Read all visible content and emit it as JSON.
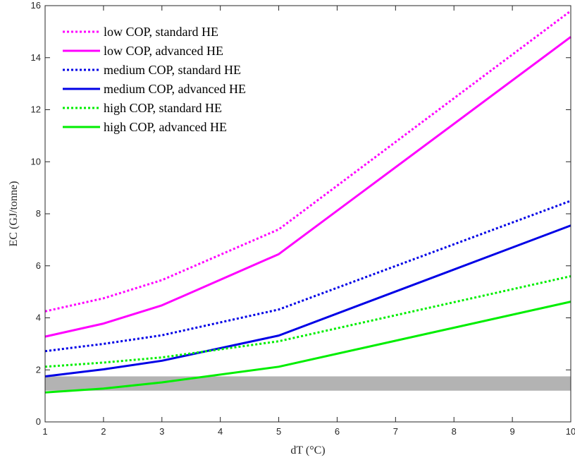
{
  "chart_data": {
    "type": "line",
    "title": "",
    "xlabel": "dT (°C)",
    "ylabel": "EC (GJ/tonne)",
    "xlim": [
      1,
      10
    ],
    "ylim": [
      0,
      16
    ],
    "xticks": [
      1,
      2,
      3,
      4,
      5,
      6,
      7,
      8,
      9,
      10
    ],
    "yticks": [
      0,
      2,
      4,
      6,
      8,
      10,
      12,
      14,
      16
    ],
    "grid": false,
    "legend_position": "top-left",
    "x": [
      1,
      2,
      3,
      5,
      10
    ],
    "band": {
      "y_range": [
        1.2,
        1.75
      ],
      "color": "#b3b3b3"
    },
    "series": [
      {
        "name": "low COP, standard HE",
        "color": "#ff00ff",
        "style": "dotted",
        "values": [
          4.25,
          4.75,
          5.45,
          7.4,
          15.8
        ]
      },
      {
        "name": "low COP, advanced HE",
        "color": "#ff00ff",
        "style": "solid",
        "values": [
          3.28,
          3.78,
          4.48,
          6.45,
          14.8
        ]
      },
      {
        "name": "medium COP, standard HE",
        "color": "#0000e6",
        "style": "dotted",
        "values": [
          2.72,
          3.0,
          3.33,
          4.32,
          8.5
        ]
      },
      {
        "name": "medium COP, advanced HE",
        "color": "#0000e6",
        "style": "solid",
        "values": [
          1.75,
          2.02,
          2.35,
          3.32,
          7.55
        ]
      },
      {
        "name": "high COP, standard HE",
        "color": "#00ee00",
        "style": "dotted",
        "values": [
          2.12,
          2.28,
          2.48,
          3.1,
          5.6
        ]
      },
      {
        "name": "high COP, advanced HE",
        "color": "#00ee00",
        "style": "solid",
        "values": [
          1.13,
          1.28,
          1.52,
          2.12,
          4.62
        ]
      }
    ]
  }
}
